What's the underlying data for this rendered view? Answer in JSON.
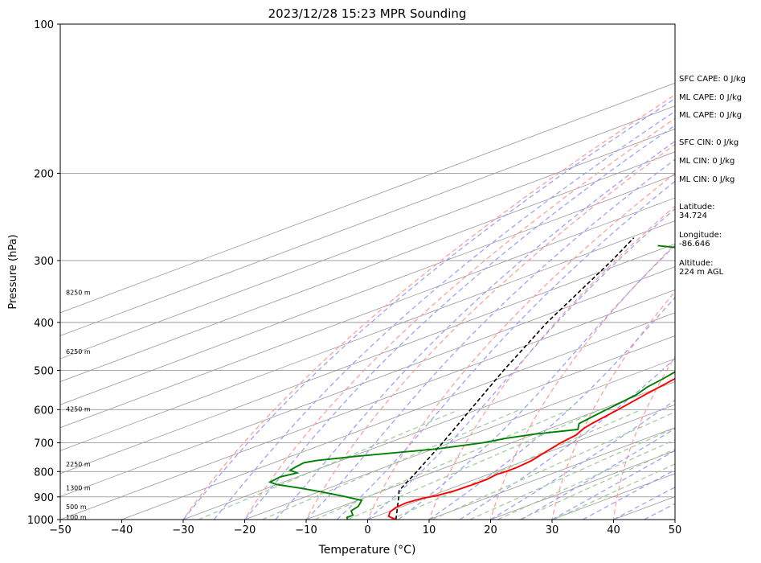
{
  "chart_data": {
    "type": "skew-t log-p sounding",
    "title": "2023/12/28 15:23 MPR Sounding",
    "xlabel": "Temperature (°C)",
    "ylabel": "Pressure (hPa)",
    "xlim": [
      -50,
      50
    ],
    "ylim": [
      1000,
      100
    ],
    "yscale": "log",
    "x_ticks": [
      -50,
      -40,
      -30,
      -20,
      -10,
      0,
      10,
      20,
      30,
      40,
      50
    ],
    "y_ticks": [
      1000,
      900,
      800,
      700,
      600,
      500,
      400,
      300,
      200,
      100
    ],
    "grid": true,
    "colors": {
      "temperature": "#ff0000",
      "dewpoint": "#008000",
      "parcel": "#000000",
      "dry_adiabats": "#ff9999",
      "moist_adiabats": "#9999ff",
      "mixing_ratio": "#99cc99",
      "isotherms": "#999999"
    },
    "temperature_profile": [
      {
        "p": 1000,
        "t": 4.6
      },
      {
        "p": 985,
        "t": 2.0
      },
      {
        "p": 965,
        "t": 0.3
      },
      {
        "p": 945,
        "t": -0.7
      },
      {
        "p": 925,
        "t": -1.0
      },
      {
        "p": 905,
        "t": -0.3
      },
      {
        "p": 895,
        "t": 0.8
      },
      {
        "p": 875,
        "t": 1.6
      },
      {
        "p": 850,
        "t": 1.9
      },
      {
        "p": 830,
        "t": 1.9
      },
      {
        "p": 810,
        "t": 1.3
      },
      {
        "p": 800,
        "t": 1.6
      },
      {
        "p": 785,
        "t": 1.6
      },
      {
        "p": 760,
        "t": 1.0
      },
      {
        "p": 730,
        "t": -0.5
      },
      {
        "p": 700,
        "t": -2.0
      },
      {
        "p": 675,
        "t": -2.9
      },
      {
        "p": 655,
        "t": -4.5
      },
      {
        "p": 640,
        "t": -5.3
      },
      {
        "p": 600,
        "t": -7.1
      },
      {
        "p": 560,
        "t": -9.2
      },
      {
        "p": 520,
        "t": -11.3
      },
      {
        "p": 480,
        "t": -13.8
      },
      {
        "p": 440,
        "t": -16.2
      },
      {
        "p": 400,
        "t": -18.9
      },
      {
        "p": 375,
        "t": -20.6
      },
      {
        "p": 355,
        "t": -22.0
      },
      {
        "p": 330,
        "t": -24.1
      },
      {
        "p": 310,
        "t": -26.4
      },
      {
        "p": 290,
        "t": -28.6
      },
      {
        "p": 270,
        "t": -31.1
      },
      {
        "p": 256,
        "t": -32.9
      }
    ],
    "dewpoint_profile": [
      {
        "p": 1000,
        "t": -3.3
      },
      {
        "p": 990,
        "t": -4.3
      },
      {
        "p": 980,
        "t": -4.3
      },
      {
        "p": 960,
        "t": -6.5
      },
      {
        "p": 940,
        "t": -7.3
      },
      {
        "p": 915,
        "t": -9.3
      },
      {
        "p": 900,
        "t": -13.3
      },
      {
        "p": 880,
        "t": -19.3
      },
      {
        "p": 865,
        "t": -24.3
      },
      {
        "p": 850,
        "t": -30.0
      },
      {
        "p": 840,
        "t": -32.2
      },
      {
        "p": 820,
        "t": -32.8
      },
      {
        "p": 805,
        "t": -31.8
      },
      {
        "p": 795,
        "t": -34.1
      },
      {
        "p": 780,
        "t": -34.7
      },
      {
        "p": 768,
        "t": -35.1
      },
      {
        "p": 760,
        "t": -34.0
      },
      {
        "p": 745,
        "t": -29.2
      },
      {
        "p": 720,
        "t": -19.4
      },
      {
        "p": 700,
        "t": -14.7
      },
      {
        "p": 685,
        "t": -12.8
      },
      {
        "p": 672,
        "t": -10.0
      },
      {
        "p": 658,
        "t": -5.0
      },
      {
        "p": 640,
        "t": -7.4
      },
      {
        "p": 620,
        "t": -8.2
      },
      {
        "p": 600,
        "t": -9.0
      },
      {
        "p": 560,
        "t": -10.6
      },
      {
        "p": 540,
        "t": -12.2
      },
      {
        "p": 520,
        "t": -13.2
      },
      {
        "p": 500,
        "t": -14.5
      },
      {
        "p": 470,
        "t": -16.6
      },
      {
        "p": 440,
        "t": -18.9
      },
      {
        "p": 420,
        "t": -20.4
      },
      {
        "p": 400,
        "t": -21.2
      },
      {
        "p": 380,
        "t": -22.8
      },
      {
        "p": 360,
        "t": -25.0
      },
      {
        "p": 350,
        "t": -26.8
      },
      {
        "p": 340,
        "t": -28.9
      },
      {
        "p": 330,
        "t": -32.1
      },
      {
        "p": 320,
        "t": -34.8
      },
      {
        "p": 310,
        "t": -35.7
      },
      {
        "p": 302,
        "t": -38.1
      },
      {
        "p": 295,
        "t": -43.2
      },
      {
        "p": 288,
        "t": -53.2
      },
      {
        "p": 285,
        "t": -64.0
      },
      {
        "p": 280,
        "t": -72.0
      }
    ],
    "parcel_profile": [
      {
        "p": 1000,
        "t": 4.6
      },
      {
        "p": 900,
        "t": -4.8
      },
      {
        "p": 874,
        "t": -7.5
      },
      {
        "p": 800,
        "t": -12.9
      },
      {
        "p": 700,
        "t": -21.2
      },
      {
        "p": 600,
        "t": -31.1
      },
      {
        "p": 500,
        "t": -42.8
      },
      {
        "p": 400,
        "t": -56.6
      },
      {
        "p": 300,
        "t": -73.0
      },
      {
        "p": 270,
        "t": -79.3
      }
    ],
    "height_labels": [
      {
        "label": "100 m",
        "p": 988
      },
      {
        "label": "500 m",
        "p": 942
      },
      {
        "label": "1300 m",
        "p": 862
      },
      {
        "label": "2250 m",
        "p": 772
      },
      {
        "label": "4250 m",
        "p": 598
      },
      {
        "label": "6250 m",
        "p": 458
      },
      {
        "label": "8250 m",
        "p": 348
      }
    ]
  },
  "stats": {
    "sfc_cape": "SFC CAPE: 0 J/kg",
    "ml_cape": "ML CAPE: 0 J/kg",
    "ml_cape_2": "ML CAPE: 0 J/kg",
    "sfc_cin": "SFC CIN: 0 J/kg",
    "ml_cin": "ML CIN: 0 J/kg",
    "ml_cin_2": "ML CIN: 0 J/kg",
    "latitude_label": "Latitude:",
    "latitude_value": "34.724",
    "longitude_label": "Longitude:",
    "longitude_value": "-86.646",
    "altitude_label": "Altitude:",
    "altitude_value": "224 m AGL"
  }
}
